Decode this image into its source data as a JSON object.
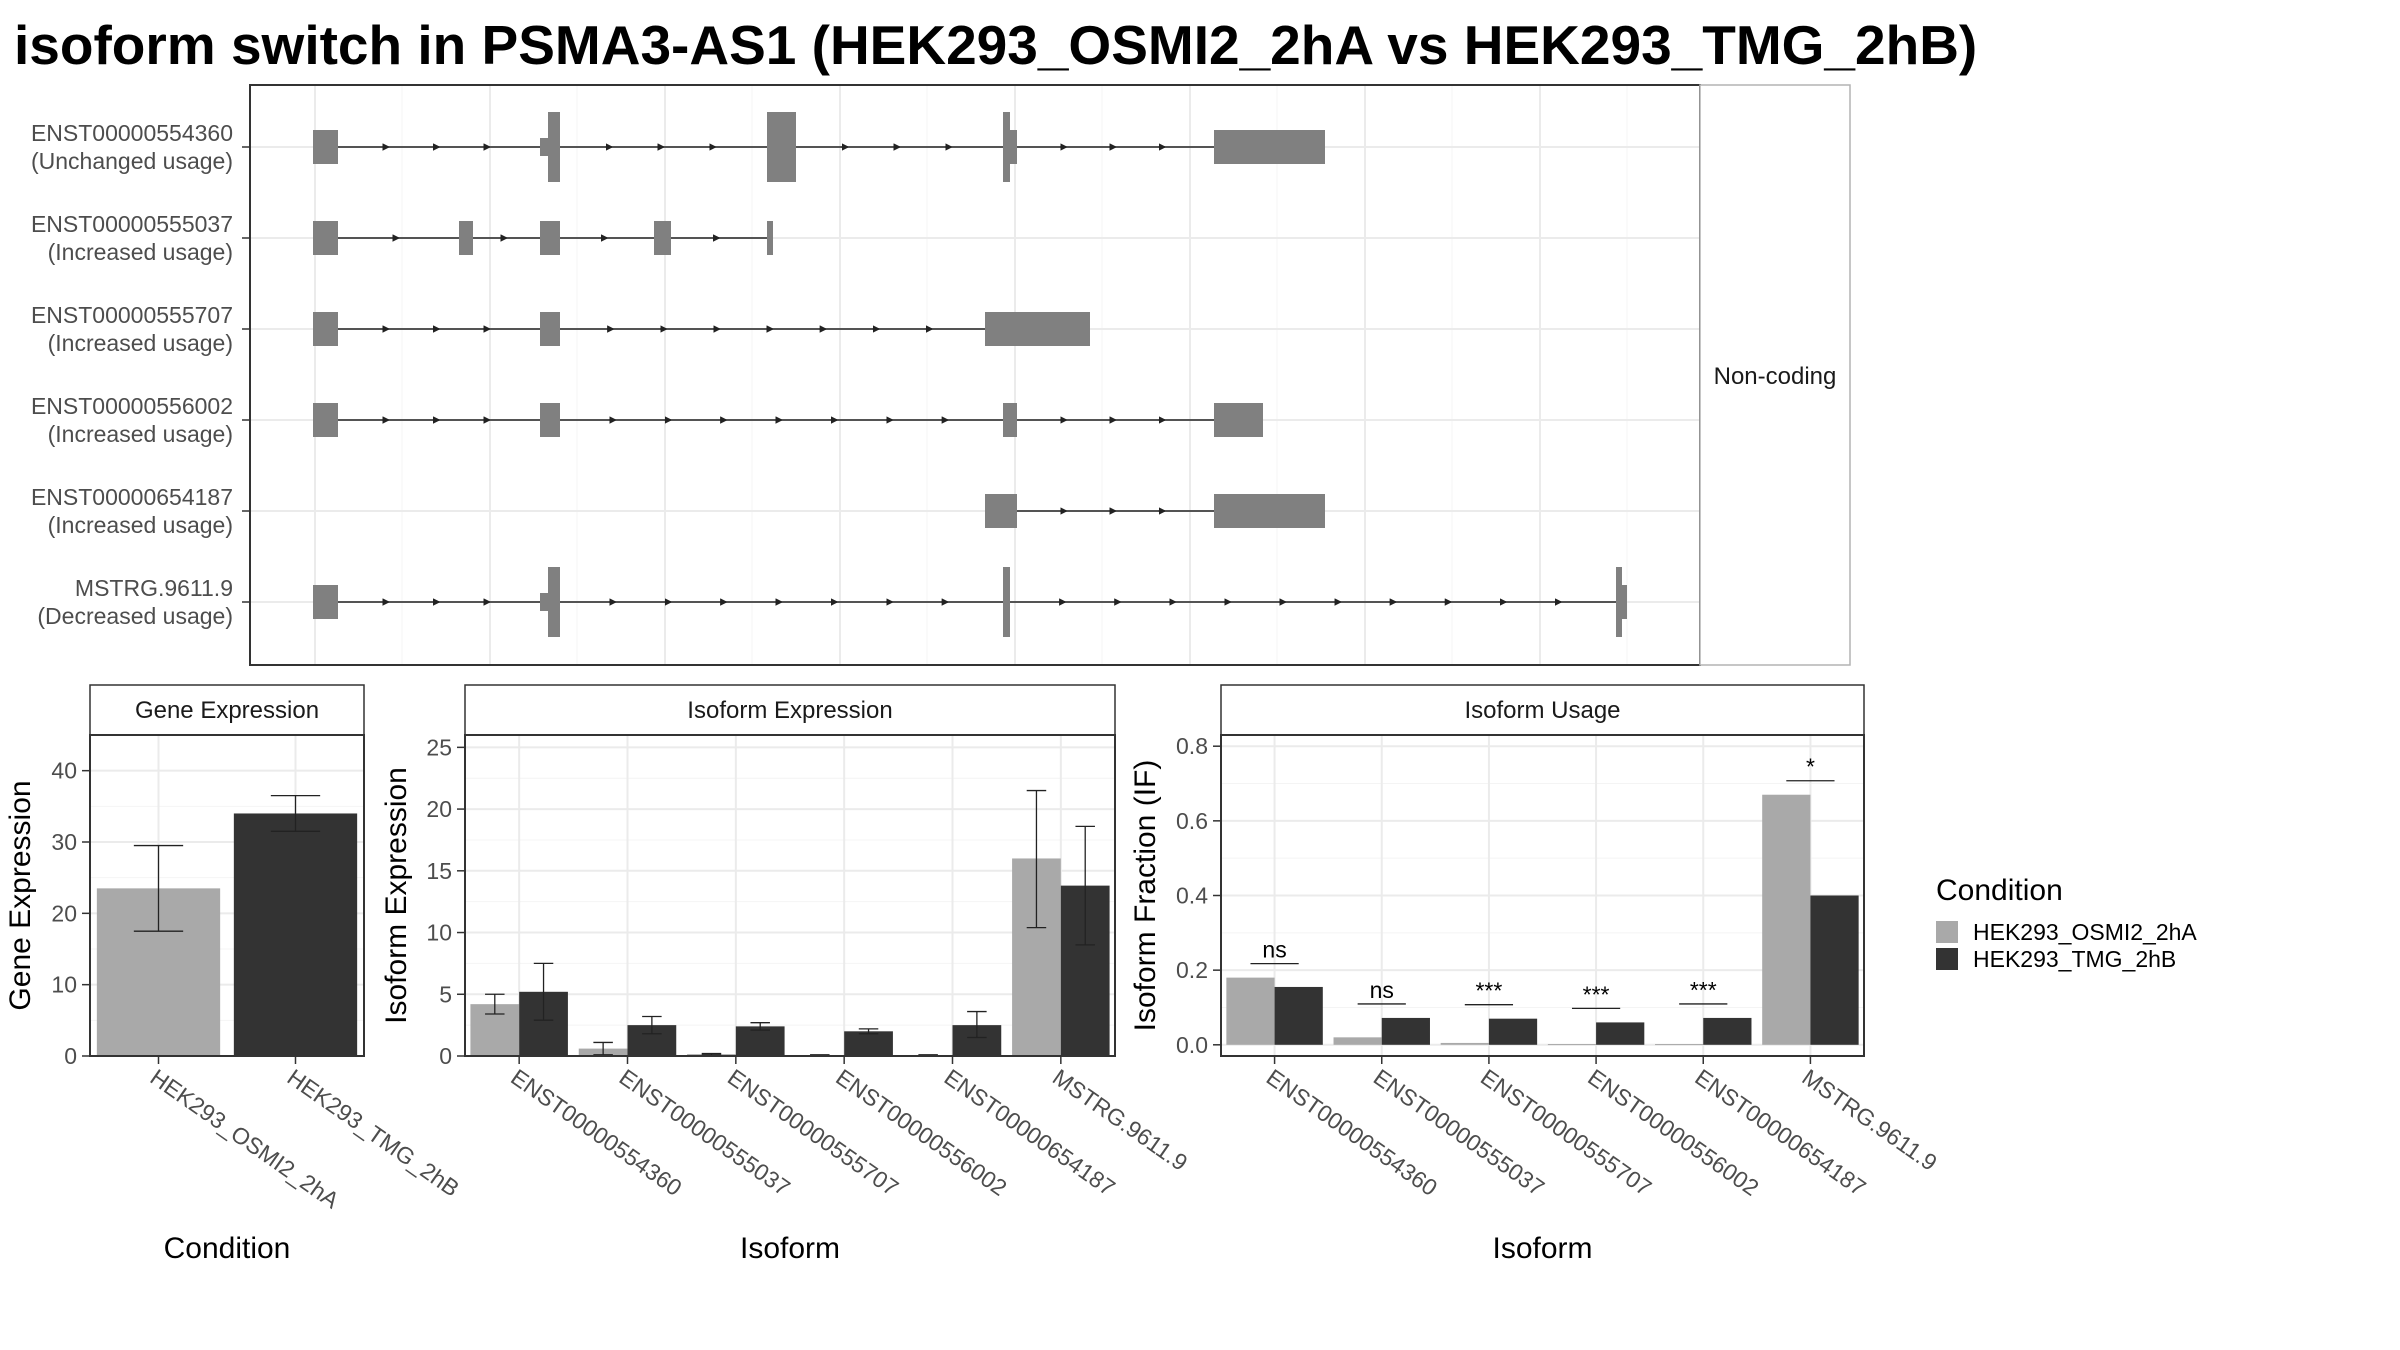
{
  "title": "isoform switch in PSMA3-AS1 (HEK293_OSMI2_2hA vs HEK293_TMG_2hB)",
  "chart_data": [
    {
      "type": "gene-structure",
      "facet_label": "Non-coding",
      "transcripts": [
        {
          "id": "ENST00000554360",
          "usage": "(Unchanged usage)"
        },
        {
          "id": "ENST00000555037",
          "usage": "(Increased usage)"
        },
        {
          "id": "ENST00000555707",
          "usage": "(Increased usage)"
        },
        {
          "id": "ENST00000556002",
          "usage": "(Increased usage)"
        },
        {
          "id": "ENST00000654187",
          "usage": "(Increased usage)"
        },
        {
          "id": "MSTRG.9611.9",
          "usage": "(Decreased usage)"
        }
      ],
      "grid": true
    },
    {
      "type": "bar",
      "facet_title": "Gene Expression",
      "xlabel": "Condition",
      "ylabel": "Gene Expression",
      "ylim": [
        0,
        45
      ],
      "yticks": [
        0,
        10,
        20,
        30,
        40
      ],
      "categories": [
        "HEK293_OSMI2_2hA",
        "HEK293_TMG_2hB"
      ],
      "values": [
        23.5,
        34.0
      ],
      "error": [
        [
          17.5,
          29.5
        ],
        [
          31.5,
          36.5
        ]
      ],
      "colors": [
        "#a9a9a9",
        "#333333"
      ]
    },
    {
      "type": "bar",
      "facet_title": "Isoform Expression",
      "xlabel": "Isoform",
      "ylabel": "Isoform Expression",
      "ylim": [
        0,
        26
      ],
      "yticks": [
        0,
        5,
        10,
        15,
        20,
        25
      ],
      "categories": [
        "ENST00000554360",
        "ENST00000555037",
        "ENST00000555707",
        "ENST00000556002",
        "ENST00000654187",
        "MSTRG.9611.9"
      ],
      "series": [
        {
          "name": "HEK293_OSMI2_2hA",
          "color": "#a9a9a9",
          "values": [
            4.2,
            0.6,
            0.15,
            0.05,
            0.05,
            16.0
          ],
          "error": [
            [
              3.4,
              5.0
            ],
            [
              0.1,
              1.1
            ],
            [
              0.1,
              0.2
            ],
            [
              0.0,
              0.1
            ],
            [
              0.0,
              0.1
            ],
            [
              10.4,
              21.5
            ]
          ]
        },
        {
          "name": "HEK293_TMG_2hB",
          "color": "#333333",
          "values": [
            5.2,
            2.5,
            2.4,
            2.0,
            2.5,
            13.8
          ],
          "error": [
            [
              2.9,
              7.5
            ],
            [
              1.8,
              3.2
            ],
            [
              2.1,
              2.7
            ],
            [
              1.8,
              2.2
            ],
            [
              1.5,
              3.6
            ],
            [
              9.0,
              18.6
            ]
          ]
        }
      ]
    },
    {
      "type": "bar",
      "facet_title": "Isoform Usage",
      "xlabel": "Isoform",
      "ylabel": "Isoform Fraction (IF)",
      "ylim": [
        -0.03,
        0.83
      ],
      "yticks": [
        "0.0",
        "0.2",
        "0.4",
        "0.6",
        "0.8"
      ],
      "categories": [
        "ENST00000554360",
        "ENST00000555037",
        "ENST00000555707",
        "ENST00000556002",
        "ENST00000654187",
        "MSTRG.9611.9"
      ],
      "series": [
        {
          "name": "HEK293_OSMI2_2hA",
          "color": "#a9a9a9",
          "values": [
            0.18,
            0.02,
            0.005,
            0.002,
            0.002,
            0.67
          ]
        },
        {
          "name": "HEK293_TMG_2hB",
          "color": "#333333",
          "values": [
            0.155,
            0.072,
            0.07,
            0.06,
            0.072,
            0.4
          ]
        }
      ],
      "significance": [
        "ns",
        "ns",
        "***",
        "***",
        "***",
        "*"
      ]
    }
  ],
  "legend": {
    "title": "Condition",
    "items": [
      {
        "label": "HEK293_OSMI2_2hA",
        "color": "#a9a9a9"
      },
      {
        "label": "HEK293_TMG_2hB",
        "color": "#333333"
      }
    ],
    "placement": "right"
  }
}
